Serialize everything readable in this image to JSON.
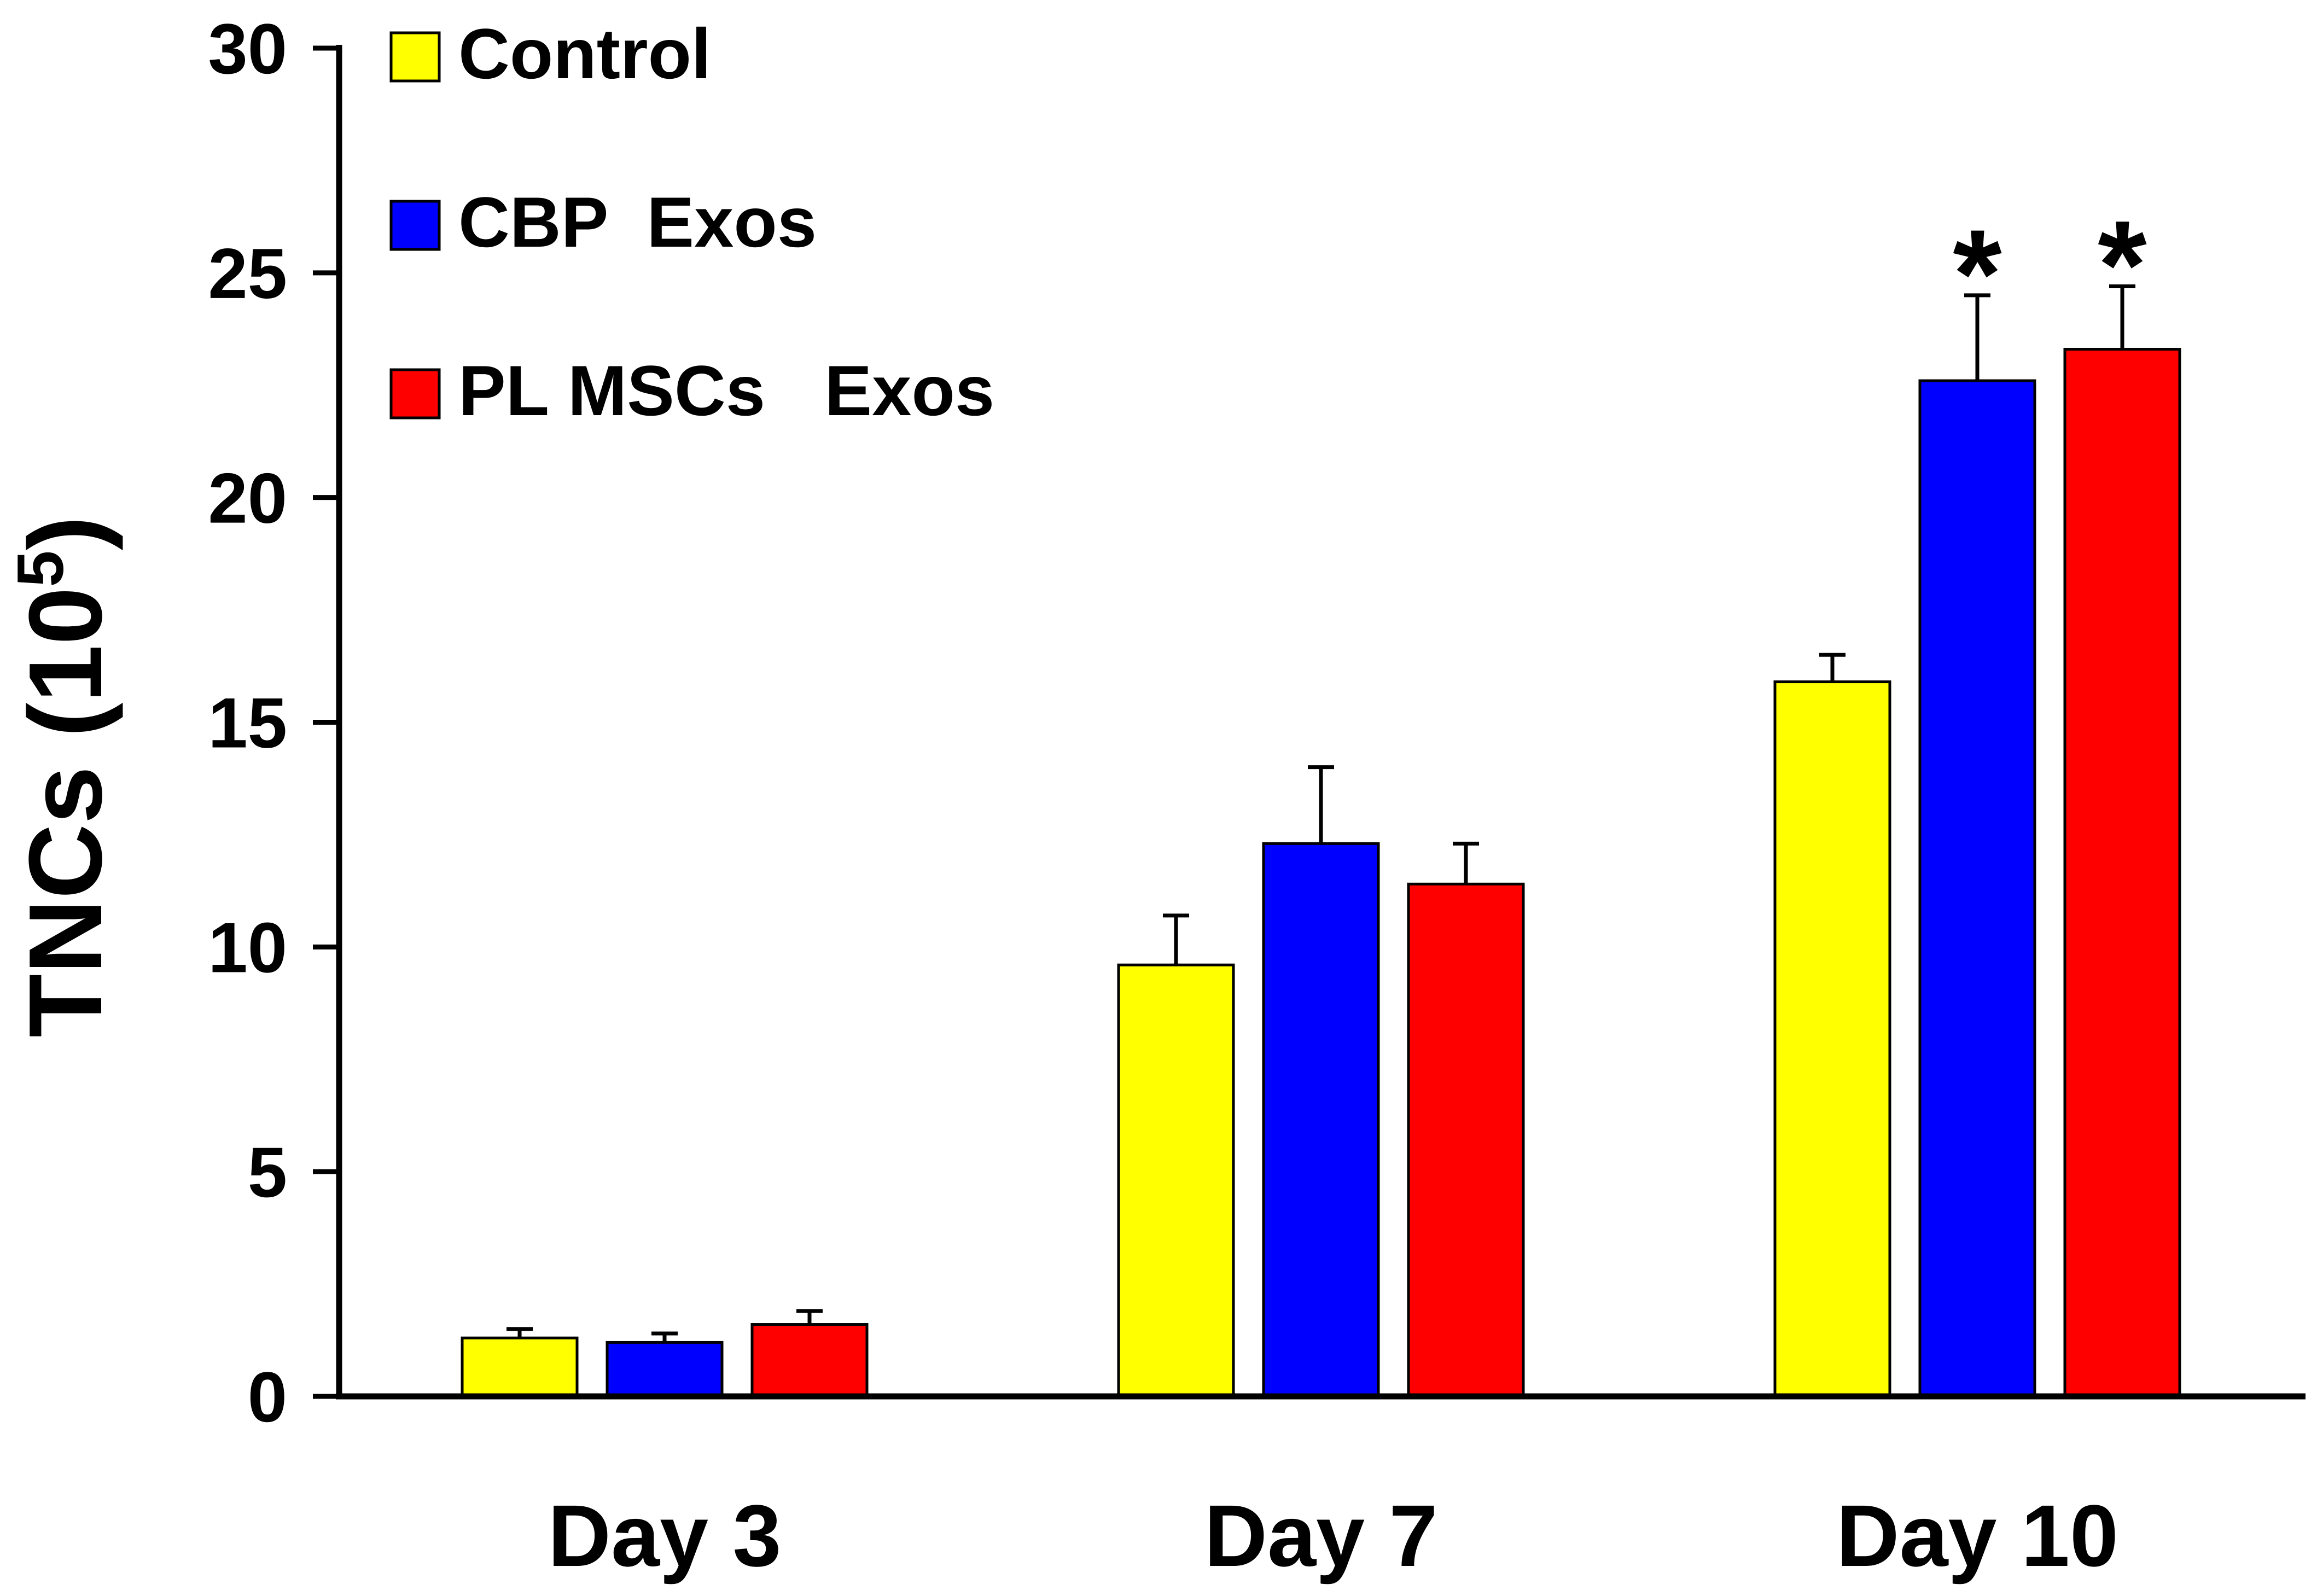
{
  "chart_data": {
    "type": "bar",
    "title": "",
    "xlabel": "",
    "ylabel": "TNCs (10",
    "ylabel_superscript": "5",
    "ylabel_close": ")",
    "ylim": [
      0,
      30
    ],
    "yticks": [
      0,
      5,
      10,
      15,
      20,
      25,
      30
    ],
    "ytick_labels": [
      "0",
      "5",
      "10",
      "15",
      "20",
      "25",
      "30"
    ],
    "categories": [
      "Day 3",
      "Day 7",
      "Day 10"
    ],
    "grid": false,
    "legend_position": "top-left",
    "series": [
      {
        "name": "Control",
        "color": "#FFFF00",
        "values": [
          1.3,
          9.6,
          15.9
        ],
        "errors": [
          0.2,
          1.1,
          0.6
        ],
        "significance": [
          "",
          "",
          ""
        ]
      },
      {
        "name": "CBP  Exos",
        "color": "#0000FF",
        "values": [
          1.2,
          12.3,
          22.6
        ],
        "errors": [
          0.2,
          1.7,
          1.9
        ],
        "significance": [
          "",
          "",
          "*"
        ]
      },
      {
        "name": "PL MSCs   Exos",
        "color": "#FF0000",
        "values": [
          1.6,
          11.4,
          23.3
        ],
        "errors": [
          0.3,
          0.9,
          1.4
        ],
        "significance": [
          "",
          "",
          "*"
        ]
      }
    ]
  }
}
